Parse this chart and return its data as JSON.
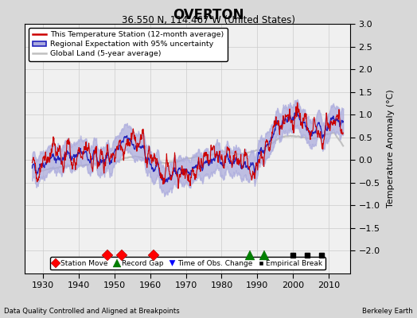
{
  "title": "OVERTON",
  "subtitle": "36.550 N, 114.467 W (United States)",
  "footer_left": "Data Quality Controlled and Aligned at Breakpoints",
  "footer_right": "Berkeley Earth",
  "ylabel": "Temperature Anomaly (°C)",
  "xlim": [
    1925,
    2016
  ],
  "ylim": [
    -2.5,
    3.0
  ],
  "yticks": [
    -2,
    -1.5,
    -1,
    -0.5,
    0,
    0.5,
    1,
    1.5,
    2,
    2.5,
    3
  ],
  "xticks": [
    1930,
    1940,
    1950,
    1960,
    1970,
    1980,
    1990,
    2000,
    2010
  ],
  "fig_bg_color": "#d8d8d8",
  "plot_bg_color": "#f0f0f0",
  "station_color": "#cc0000",
  "regional_color": "#2222bb",
  "regional_fill_color": "#aaaadd",
  "global_color": "#c0c0c0",
  "seed": 42,
  "station_moves": [
    1948,
    1952,
    1961
  ],
  "record_gaps": [
    1988,
    1992
  ],
  "time_obs_changes": [],
  "empirical_breaks": [
    2000,
    2004,
    2008
  ]
}
